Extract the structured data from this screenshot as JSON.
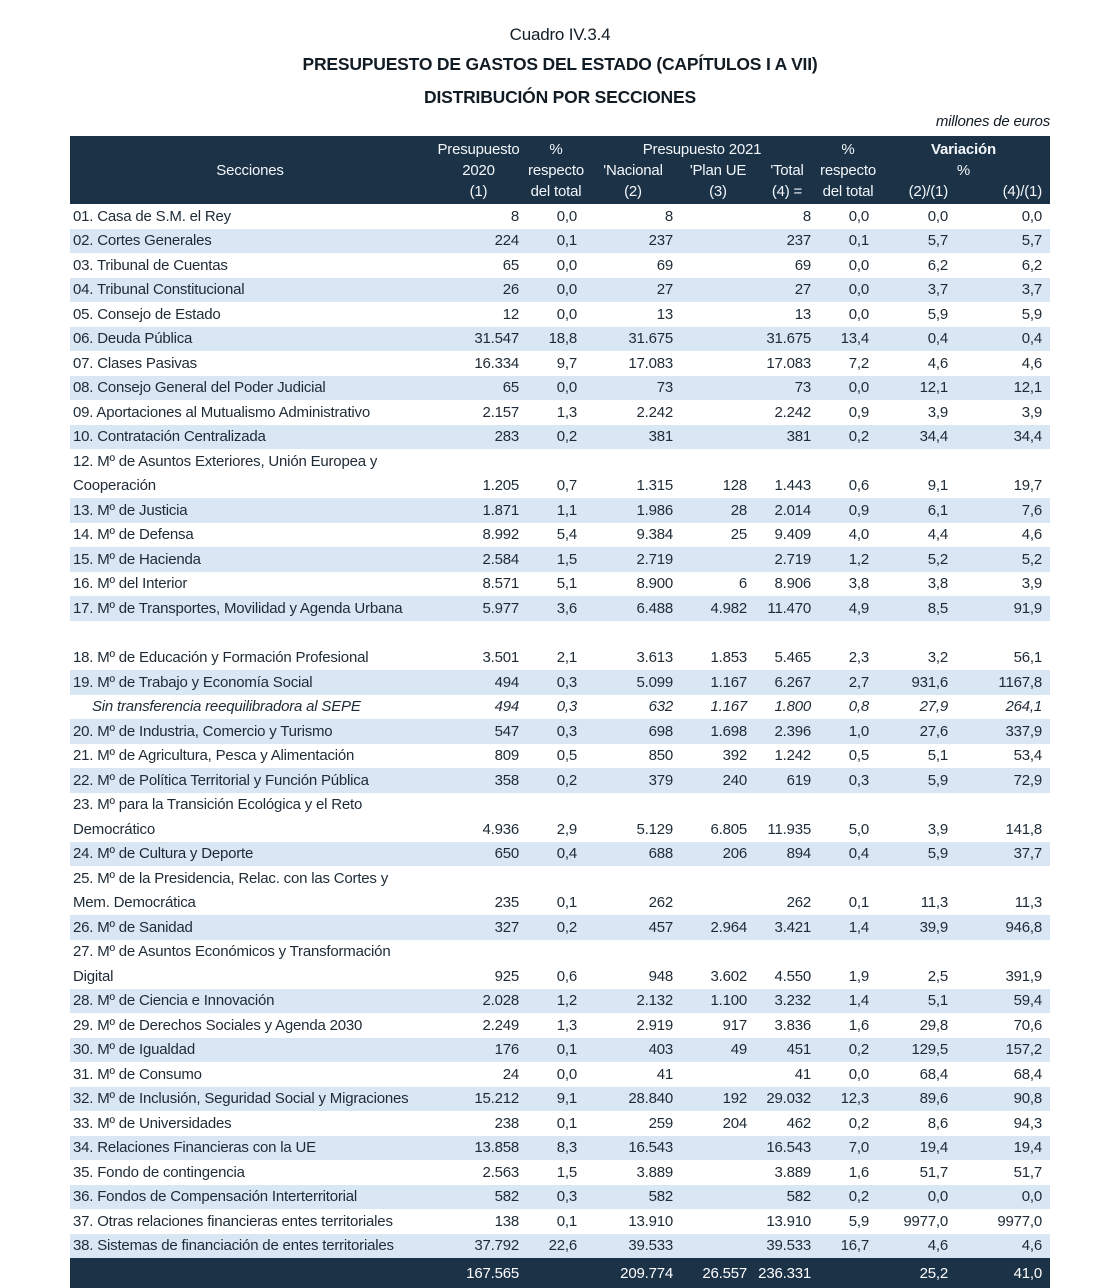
{
  "page": {
    "caption": "Cuadro IV.3.4",
    "title1": "PRESUPUESTO DE GASTOS DEL ESTADO (CAPÍTULOS I A VII)",
    "title2": "DISTRIBUCIÓN POR SECCIONES",
    "units_note": "millones de euros"
  },
  "colors": {
    "header_bg": "#1c3247",
    "row_alt_bg": "#d8e7f3",
    "header_text": "#ffffff",
    "body_text": "#1e2b36"
  },
  "table": {
    "header": {
      "secciones": "Secciones",
      "col_2020": [
        "Presupuesto",
        "2020",
        "(1)"
      ],
      "col_pct1": [
        "%",
        "respecto",
        "del total"
      ],
      "group_2021": "Presupuesto 2021",
      "col_nacional": [
        "'Nacional",
        "(2)"
      ],
      "col_planue": [
        "'Plan UE",
        "(3)"
      ],
      "col_total": [
        "'Total",
        "(4) ="
      ],
      "col_pct2": [
        "%",
        "respecto",
        "del total"
      ],
      "group_var": "Variación",
      "group_var_pct": "%",
      "col_v21": "(2)/(1)",
      "col_v41": "(4)/(1)"
    },
    "rows": [
      {
        "label": "01. Casa de S.M. el Rey",
        "shaded": false,
        "values": [
          "8",
          "0,0",
          "8",
          "",
          "8",
          "0,0",
          "0,0",
          "0,0"
        ]
      },
      {
        "label": "02. Cortes Generales",
        "shaded": true,
        "values": [
          "224",
          "0,1",
          "237",
          "",
          "237",
          "0,1",
          "5,7",
          "5,7"
        ]
      },
      {
        "label": "03. Tribunal de Cuentas",
        "shaded": false,
        "values": [
          "65",
          "0,0",
          "69",
          "",
          "69",
          "0,0",
          "6,2",
          "6,2"
        ]
      },
      {
        "label": "04. Tribunal Constitucional",
        "shaded": true,
        "values": [
          "26",
          "0,0",
          "27",
          "",
          "27",
          "0,0",
          "3,7",
          "3,7"
        ]
      },
      {
        "label": "05. Consejo de Estado",
        "shaded": false,
        "values": [
          "12",
          "0,0",
          "13",
          "",
          "13",
          "0,0",
          "5,9",
          "5,9"
        ]
      },
      {
        "label": "06. Deuda Pública",
        "shaded": true,
        "values": [
          "31.547",
          "18,8",
          "31.675",
          "",
          "31.675",
          "13,4",
          "0,4",
          "0,4"
        ]
      },
      {
        "label": "07. Clases Pasivas",
        "shaded": false,
        "values": [
          "16.334",
          "9,7",
          "17.083",
          "",
          "17.083",
          "7,2",
          "4,6",
          "4,6"
        ]
      },
      {
        "label": "08. Consejo General del Poder Judicial",
        "shaded": true,
        "values": [
          "65",
          "0,0",
          "73",
          "",
          "73",
          "0,0",
          "12,1",
          "12,1"
        ]
      },
      {
        "label": "09. Aportaciones al Mutualismo Administrativo",
        "shaded": false,
        "values": [
          "2.157",
          "1,3",
          "2.242",
          "",
          "2.242",
          "0,9",
          "3,9",
          "3,9"
        ]
      },
      {
        "label": "10. Contratación Centralizada",
        "shaded": true,
        "values": [
          "283",
          "0,2",
          "381",
          "",
          "381",
          "0,2",
          "34,4",
          "34,4"
        ]
      },
      {
        "label": "12. Mº de Asuntos Exteriores, Unión Europea y",
        "label2": "Cooperación",
        "shaded": false,
        "values": [
          "1.205",
          "0,7",
          "1.315",
          "128",
          "1.443",
          "0,6",
          "9,1",
          "19,7"
        ]
      },
      {
        "label": "13. Mº de Justicia",
        "shaded": true,
        "values": [
          "1.871",
          "1,1",
          "1.986",
          "28",
          "2.014",
          "0,9",
          "6,1",
          "7,6"
        ]
      },
      {
        "label": "14. Mº de Defensa",
        "shaded": false,
        "values": [
          "8.992",
          "5,4",
          "9.384",
          "25",
          "9.409",
          "4,0",
          "4,4",
          "4,6"
        ]
      },
      {
        "label": "15. Mº de Hacienda",
        "shaded": true,
        "values": [
          "2.584",
          "1,5",
          "2.719",
          "",
          "2.719",
          "1,2",
          "5,2",
          "5,2"
        ]
      },
      {
        "label": "16. Mº del Interior",
        "shaded": false,
        "values": [
          "8.571",
          "5,1",
          "8.900",
          "6",
          "8.906",
          "3,8",
          "3,8",
          "3,9"
        ]
      },
      {
        "label": "17. Mº de Transportes, Movilidad y Agenda Urbana",
        "shaded": true,
        "values": [
          "5.977",
          "3,6",
          "6.488",
          "4.982",
          "11.470",
          "4,9",
          "8,5",
          "91,9"
        ]
      },
      {
        "spacer": true
      },
      {
        "label": "18. Mº de Educación y Formación Profesional",
        "shaded": false,
        "values": [
          "3.501",
          "2,1",
          "3.613",
          "1.853",
          "5.465",
          "2,3",
          "3,2",
          "56,1"
        ]
      },
      {
        "label": "19. Mº de Trabajo y Economía Social",
        "shaded": true,
        "values": [
          "494",
          "0,3",
          "5.099",
          "1.167",
          "6.267",
          "2,7",
          "931,6",
          "1167,8"
        ]
      },
      {
        "label": "Sin transferencia reequilibradora al SEPE",
        "shaded": false,
        "italic": true,
        "indent": true,
        "values": [
          "494",
          "0,3",
          "632",
          "1.167",
          "1.800",
          "0,8",
          "27,9",
          "264,1"
        ]
      },
      {
        "label": "20. Mº de Industria, Comercio y Turismo",
        "shaded": true,
        "values": [
          "547",
          "0,3",
          "698",
          "1.698",
          "2.396",
          "1,0",
          "27,6",
          "337,9"
        ]
      },
      {
        "label": "21. Mº de Agricultura, Pesca y Alimentación",
        "shaded": false,
        "values": [
          "809",
          "0,5",
          "850",
          "392",
          "1.242",
          "0,5",
          "5,1",
          "53,4"
        ]
      },
      {
        "label": "22. Mº de Política Territorial y Función Pública",
        "shaded": true,
        "values": [
          "358",
          "0,2",
          "379",
          "240",
          "619",
          "0,3",
          "5,9",
          "72,9"
        ]
      },
      {
        "label": "23. Mº para la Transición Ecológica y el Reto",
        "label2": "Democrático",
        "shaded": false,
        "values": [
          "4.936",
          "2,9",
          "5.129",
          "6.805",
          "11.935",
          "5,0",
          "3,9",
          "141,8"
        ]
      },
      {
        "label": "24. Mº de Cultura y Deporte",
        "shaded": true,
        "values": [
          "650",
          "0,4",
          "688",
          "206",
          "894",
          "0,4",
          "5,9",
          "37,7"
        ]
      },
      {
        "label": "25. Mº de la Presidencia, Relac. con las Cortes y",
        "label2": "Mem. Democrática",
        "shaded": false,
        "values": [
          "235",
          "0,1",
          "262",
          "",
          "262",
          "0,1",
          "11,3",
          "11,3"
        ]
      },
      {
        "label": "26. Mº de Sanidad",
        "shaded": true,
        "values": [
          "327",
          "0,2",
          "457",
          "2.964",
          "3.421",
          "1,4",
          "39,9",
          "946,8"
        ]
      },
      {
        "label": "27. Mº de Asuntos Económicos y Transformación",
        "label2": "Digital",
        "shaded": false,
        "values": [
          "925",
          "0,6",
          "948",
          "3.602",
          "4.550",
          "1,9",
          "2,5",
          "391,9"
        ]
      },
      {
        "label": "28. Mº de Ciencia e Innovación",
        "shaded": true,
        "values": [
          "2.028",
          "1,2",
          "2.132",
          "1.100",
          "3.232",
          "1,4",
          "5,1",
          "59,4"
        ]
      },
      {
        "label": "29. Mº de Derechos Sociales y Agenda 2030",
        "shaded": false,
        "values": [
          "2.249",
          "1,3",
          "2.919",
          "917",
          "3.836",
          "1,6",
          "29,8",
          "70,6"
        ]
      },
      {
        "label": "30. Mº de Igualdad",
        "shaded": true,
        "values": [
          "176",
          "0,1",
          "403",
          "49",
          "451",
          "0,2",
          "129,5",
          "157,2"
        ]
      },
      {
        "label": "31. Mº de Consumo",
        "shaded": false,
        "values": [
          "24",
          "0,0",
          "41",
          "",
          "41",
          "0,0",
          "68,4",
          "68,4"
        ]
      },
      {
        "label": "32. Mº de Inclusión, Seguridad Social y Migraciones",
        "shaded": true,
        "values": [
          "15.212",
          "9,1",
          "28.840",
          "192",
          "29.032",
          "12,3",
          "89,6",
          "90,8"
        ]
      },
      {
        "label": "33. Mº de Universidades",
        "shaded": false,
        "values": [
          "238",
          "0,1",
          "259",
          "204",
          "462",
          "0,2",
          "8,6",
          "94,3"
        ]
      },
      {
        "label": "34. Relaciones Financieras con la UE",
        "shaded": true,
        "values": [
          "13.858",
          "8,3",
          "16.543",
          "",
          "16.543",
          "7,0",
          "19,4",
          "19,4"
        ]
      },
      {
        "label": "35. Fondo de contingencia",
        "shaded": false,
        "values": [
          "2.563",
          "1,5",
          "3.889",
          "",
          "3.889",
          "1,6",
          "51,7",
          "51,7"
        ]
      },
      {
        "label": "36. Fondos de Compensación Interterritorial",
        "shaded": true,
        "values": [
          "582",
          "0,3",
          "582",
          "",
          "582",
          "0,2",
          "0,0",
          "0,0"
        ]
      },
      {
        "label": "37. Otras relaciones financieras entes territoriales",
        "shaded": false,
        "values": [
          "138",
          "0,1",
          "13.910",
          "",
          "13.910",
          "5,9",
          "9977,0",
          "9977,0"
        ]
      },
      {
        "label": "38. Sistemas de financiación de entes territoriales",
        "shaded": true,
        "values": [
          "37.792",
          "22,6",
          "39.533",
          "",
          "39.533",
          "16,7",
          "4,6",
          "4,6"
        ]
      }
    ],
    "total_values": [
      "167.565",
      "",
      "209.774",
      "26.557",
      "236.331",
      "",
      "25,2",
      "41,0"
    ]
  }
}
